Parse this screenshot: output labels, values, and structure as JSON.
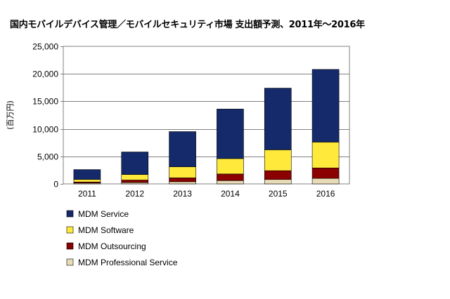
{
  "chart_data": {
    "type": "bar",
    "stacked": true,
    "title": "国内モバイルデバイス管理／モバイルセキュリティ市場 支出額予測、2011年〜2016年",
    "ylabel": "(百万円)",
    "xlabel": "",
    "categories": [
      "2011",
      "2012",
      "2013",
      "2014",
      "2015",
      "2016"
    ],
    "ylim": [
      0,
      25000
    ],
    "yticks": [
      0,
      5000,
      10000,
      15000,
      20000,
      25000
    ],
    "ytick_labels": [
      "0",
      "5,000",
      "10,000",
      "15,000",
      "20,000",
      "25,000"
    ],
    "grid": true,
    "legend_position": "bottom-left",
    "series": [
      {
        "name": "MDM Professional Service",
        "color": "#e8dcb8",
        "values": [
          150,
          250,
          400,
          600,
          800,
          1000
        ]
      },
      {
        "name": "MDM Outsourcing",
        "color": "#8b0000",
        "values": [
          200,
          450,
          700,
          1200,
          1600,
          1900
        ]
      },
      {
        "name": "MDM Software",
        "color": "#ffea3c",
        "values": [
          450,
          1000,
          2000,
          2800,
          3800,
          4700
        ]
      },
      {
        "name": "MDM Service",
        "color": "#142a6a",
        "values": [
          1800,
          4100,
          6400,
          9000,
          11200,
          13200
        ]
      }
    ],
    "legend_order": [
      "MDM Service",
      "MDM Software",
      "MDM Outsourcing",
      "MDM Professional Service"
    ]
  }
}
